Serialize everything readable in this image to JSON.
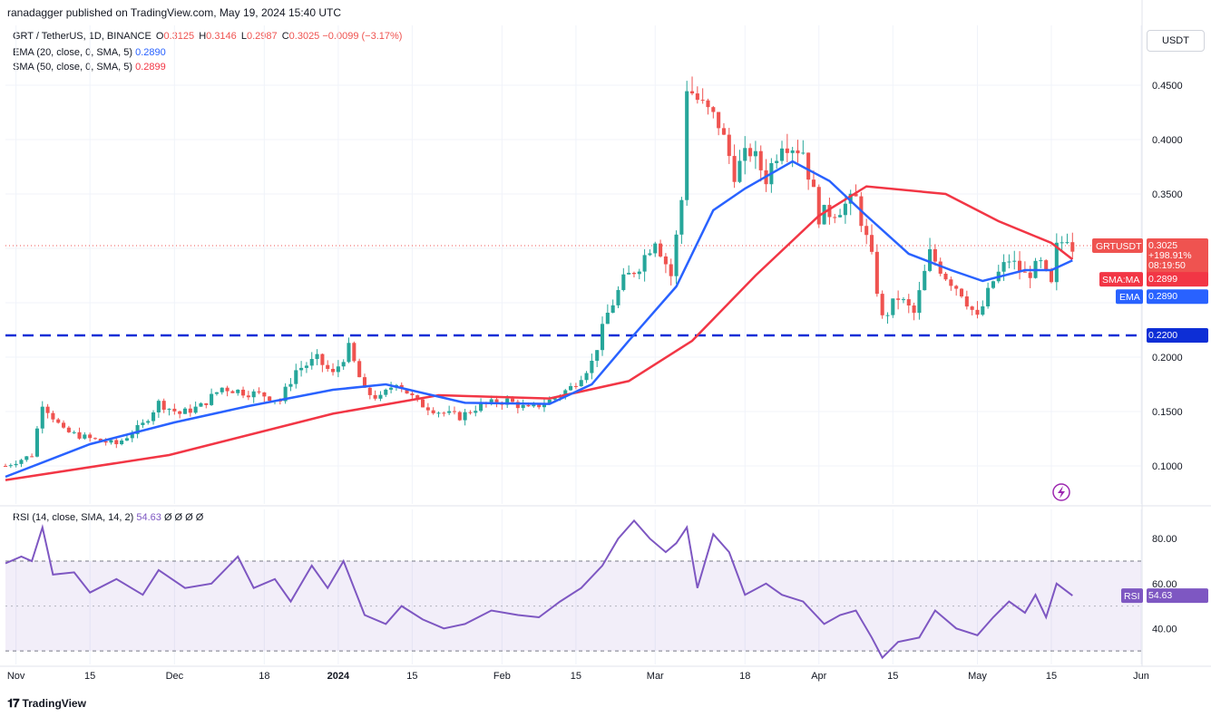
{
  "header": {
    "published": "ranadagger published on TradingView.com, May 19, 2024 15:40 UTC"
  },
  "legend": {
    "symbol": "GRT / TetherUS, 1D, BINANCE",
    "open_label": "O",
    "open": "0.3125",
    "high_label": "H",
    "high": "0.3146",
    "low_label": "L",
    "low": "0.2987",
    "close_label": "C",
    "close": "0.3025",
    "change": "−0.0099 (−3.17%)",
    "ema_label": "EMA (20, close, 0, SMA, 5)",
    "ema_value": "0.2890",
    "sma_label": "SMA (50, close, 0, SMA, 5)",
    "sma_value": "0.2899"
  },
  "currency": "USDT",
  "price_tags": {
    "symbol_tag": "GRTUSDT",
    "price": "0.3025",
    "percent": "+198.91%",
    "countdown": "08:19:50",
    "sma_tag": "SMA:MA",
    "sma_value": "0.2899",
    "ema_tag": "EMA",
    "ema_value": "0.2890",
    "level_value": "0.2200"
  },
  "rsi": {
    "label": "RSI (14, close, SMA, 14, 2)",
    "value": "54.63",
    "flags": "Ø Ø Ø Ø",
    "tag": "RSI",
    "tag_value": "54.63"
  },
  "footer": {
    "brand": "TradingView"
  },
  "colors": {
    "up": "#26a69a",
    "down": "#ef5350",
    "ema": "#2962ff",
    "sma": "#f23645",
    "rsi": "#7e57c2",
    "level": "#0d2ed6"
  },
  "chart_data": {
    "type": "candlestick",
    "price_axis": {
      "ticks": [
        0.1,
        0.15,
        0.2,
        0.25,
        0.3,
        0.35,
        0.4,
        0.45
      ],
      "tick_labels": [
        "0.1000",
        "0.1500",
        "0.2000",
        "",
        "",
        "0.3500",
        "0.4000",
        "0.4500"
      ],
      "range": [
        0.065,
        0.505
      ]
    },
    "rsi_axis": {
      "ticks": [
        40,
        60,
        80
      ],
      "tick_labels": [
        "40.00",
        "60.00",
        "80.00"
      ],
      "range": [
        24,
        93
      ],
      "bands": [
        30,
        70
      ]
    },
    "time_axis": {
      "start": "2023-10-30",
      "end": "2024-06-01",
      "labels": [
        {
          "date": "2023-11-01",
          "text": "Nov"
        },
        {
          "date": "2023-11-15",
          "text": "15"
        },
        {
          "date": "2023-12-01",
          "text": "Dec"
        },
        {
          "date": "2023-12-18",
          "text": "18"
        },
        {
          "date": "2024-01-01",
          "text": "2024"
        },
        {
          "date": "2024-01-15",
          "text": "15"
        },
        {
          "date": "2024-02-01",
          "text": "Feb"
        },
        {
          "date": "2024-02-15",
          "text": "15"
        },
        {
          "date": "2024-03-01",
          "text": "Mar"
        },
        {
          "date": "2024-03-18",
          "text": "18"
        },
        {
          "date": "2024-04-01",
          "text": "Apr"
        },
        {
          "date": "2024-04-15",
          "text": "15"
        },
        {
          "date": "2024-05-01",
          "text": "May"
        },
        {
          "date": "2024-05-15",
          "text": "15"
        },
        {
          "date": "2024-06-01",
          "text": "Jun"
        }
      ]
    },
    "horizontal_level": 0.22,
    "last_price": 0.3025,
    "close_path": [
      [
        "2023-10-30",
        0.1
      ],
      [
        "2023-11-04",
        0.11
      ],
      [
        "2023-11-06",
        0.158
      ],
      [
        "2023-11-10",
        0.132
      ],
      [
        "2023-11-15",
        0.125
      ],
      [
        "2023-11-20",
        0.12
      ],
      [
        "2023-11-25",
        0.138
      ],
      [
        "2023-11-28",
        0.158
      ],
      [
        "2023-12-02",
        0.148
      ],
      [
        "2023-12-06",
        0.155
      ],
      [
        "2023-12-10",
        0.172
      ],
      [
        "2023-12-14",
        0.168
      ],
      [
        "2023-12-18",
        0.165
      ],
      [
        "2023-12-21",
        0.16
      ],
      [
        "2023-12-24",
        0.188
      ],
      [
        "2023-12-28",
        0.198
      ],
      [
        "2023-12-31",
        0.184
      ],
      [
        "2024-01-03",
        0.208
      ],
      [
        "2024-01-06",
        0.168
      ],
      [
        "2024-01-09",
        0.162
      ],
      [
        "2024-01-12",
        0.178
      ],
      [
        "2024-01-16",
        0.158
      ],
      [
        "2024-01-20",
        0.15
      ],
      [
        "2024-01-24",
        0.145
      ],
      [
        "2024-01-28",
        0.156
      ],
      [
        "2024-02-02",
        0.16
      ],
      [
        "2024-02-06",
        0.152
      ],
      [
        "2024-02-10",
        0.16
      ],
      [
        "2024-02-14",
        0.172
      ],
      [
        "2024-02-18",
        0.195
      ],
      [
        "2024-02-21",
        0.24
      ],
      [
        "2024-02-24",
        0.27
      ],
      [
        "2024-02-27",
        0.285
      ],
      [
        "2024-03-01",
        0.31
      ],
      [
        "2024-03-04",
        0.275
      ],
      [
        "2024-03-06",
        0.345
      ],
      [
        "2024-03-07",
        0.45
      ],
      [
        "2024-03-10",
        0.43
      ],
      [
        "2024-03-13",
        0.415
      ],
      [
        "2024-03-16",
        0.37
      ],
      [
        "2024-03-19",
        0.39
      ],
      [
        "2024-03-22",
        0.365
      ],
      [
        "2024-03-25",
        0.4
      ],
      [
        "2024-03-29",
        0.39
      ],
      [
        "2024-04-01",
        0.33
      ],
      [
        "2024-04-04",
        0.335
      ],
      [
        "2024-04-08",
        0.345
      ],
      [
        "2024-04-11",
        0.29
      ],
      [
        "2024-04-13",
        0.235
      ],
      [
        "2024-04-16",
        0.255
      ],
      [
        "2024-04-19",
        0.24
      ],
      [
        "2024-04-22",
        0.295
      ],
      [
        "2024-04-25",
        0.275
      ],
      [
        "2024-04-28",
        0.26
      ],
      [
        "2024-05-01",
        0.235
      ],
      [
        "2024-05-04",
        0.27
      ],
      [
        "2024-05-07",
        0.29
      ],
      [
        "2024-05-10",
        0.275
      ],
      [
        "2024-05-13",
        0.285
      ],
      [
        "2024-05-15",
        0.265
      ],
      [
        "2024-05-16",
        0.3
      ],
      [
        "2024-05-18",
        0.312
      ],
      [
        "2024-05-19",
        0.3025
      ]
    ],
    "ema20_path": [
      [
        "2023-10-30",
        0.09
      ],
      [
        "2023-11-15",
        0.12
      ],
      [
        "2023-12-01",
        0.14
      ],
      [
        "2023-12-15",
        0.155
      ],
      [
        "2023-12-31",
        0.17
      ],
      [
        "2024-01-10",
        0.175
      ],
      [
        "2024-01-25",
        0.158
      ],
      [
        "2024-02-10",
        0.157
      ],
      [
        "2024-02-18",
        0.175
      ],
      [
        "2024-02-25",
        0.215
      ],
      [
        "2024-03-05",
        0.265
      ],
      [
        "2024-03-12",
        0.335
      ],
      [
        "2024-03-18",
        0.355
      ],
      [
        "2024-03-27",
        0.38
      ],
      [
        "2024-04-03",
        0.362
      ],
      [
        "2024-04-10",
        0.33
      ],
      [
        "2024-04-18",
        0.295
      ],
      [
        "2024-04-26",
        0.28
      ],
      [
        "2024-05-02",
        0.27
      ],
      [
        "2024-05-10",
        0.28
      ],
      [
        "2024-05-15",
        0.28
      ],
      [
        "2024-05-19",
        0.289
      ]
    ],
    "sma50_path": [
      [
        "2023-10-30",
        0.087
      ],
      [
        "2023-11-30",
        0.11
      ],
      [
        "2023-12-31",
        0.148
      ],
      [
        "2024-01-20",
        0.165
      ],
      [
        "2024-02-10",
        0.162
      ],
      [
        "2024-02-25",
        0.178
      ],
      [
        "2024-03-08",
        0.215
      ],
      [
        "2024-03-20",
        0.275
      ],
      [
        "2024-04-01",
        0.33
      ],
      [
        "2024-04-10",
        0.357
      ],
      [
        "2024-04-25",
        0.35
      ],
      [
        "2024-05-05",
        0.325
      ],
      [
        "2024-05-15",
        0.305
      ],
      [
        "2024-05-19",
        0.2899
      ]
    ],
    "rsi_path": [
      [
        "2023-10-30",
        69
      ],
      [
        "2023-11-02",
        72
      ],
      [
        "2023-11-04",
        70
      ],
      [
        "2023-11-06",
        85
      ],
      [
        "2023-11-08",
        64
      ],
      [
        "2023-11-12",
        65
      ],
      [
        "2023-11-15",
        56
      ],
      [
        "2023-11-20",
        62
      ],
      [
        "2023-11-25",
        55
      ],
      [
        "2023-11-28",
        66
      ],
      [
        "2023-12-03",
        58
      ],
      [
        "2023-12-08",
        60
      ],
      [
        "2023-12-13",
        72
      ],
      [
        "2023-12-16",
        58
      ],
      [
        "2023-12-20",
        62
      ],
      [
        "2023-12-23",
        52
      ],
      [
        "2023-12-27",
        68
      ],
      [
        "2023-12-30",
        58
      ],
      [
        "2024-01-02",
        70
      ],
      [
        "2024-01-06",
        46
      ],
      [
        "2024-01-10",
        42
      ],
      [
        "2024-01-13",
        50
      ],
      [
        "2024-01-17",
        44
      ],
      [
        "2024-01-21",
        40
      ],
      [
        "2024-01-25",
        42
      ],
      [
        "2024-01-30",
        48
      ],
      [
        "2024-02-04",
        46
      ],
      [
        "2024-02-08",
        45
      ],
      [
        "2024-02-12",
        52
      ],
      [
        "2024-02-16",
        58
      ],
      [
        "2024-02-20",
        68
      ],
      [
        "2024-02-23",
        80
      ],
      [
        "2024-02-26",
        88
      ],
      [
        "2024-02-29",
        80
      ],
      [
        "2024-03-03",
        74
      ],
      [
        "2024-03-05",
        78
      ],
      [
        "2024-03-07",
        85
      ],
      [
        "2024-03-09",
        58
      ],
      [
        "2024-03-12",
        82
      ],
      [
        "2024-03-15",
        74
      ],
      [
        "2024-03-18",
        55
      ],
      [
        "2024-03-22",
        60
      ],
      [
        "2024-03-25",
        55
      ],
      [
        "2024-03-29",
        52
      ],
      [
        "2024-04-02",
        42
      ],
      [
        "2024-04-05",
        46
      ],
      [
        "2024-04-08",
        48
      ],
      [
        "2024-04-11",
        36
      ],
      [
        "2024-04-13",
        27
      ],
      [
        "2024-04-16",
        34
      ],
      [
        "2024-04-20",
        36
      ],
      [
        "2024-04-23",
        48
      ],
      [
        "2024-04-27",
        40
      ],
      [
        "2024-05-01",
        37
      ],
      [
        "2024-05-04",
        45
      ],
      [
        "2024-05-07",
        52
      ],
      [
        "2024-05-10",
        47
      ],
      [
        "2024-05-12",
        55
      ],
      [
        "2024-05-14",
        45
      ],
      [
        "2024-05-16",
        60
      ],
      [
        "2024-05-19",
        54.63
      ]
    ]
  }
}
